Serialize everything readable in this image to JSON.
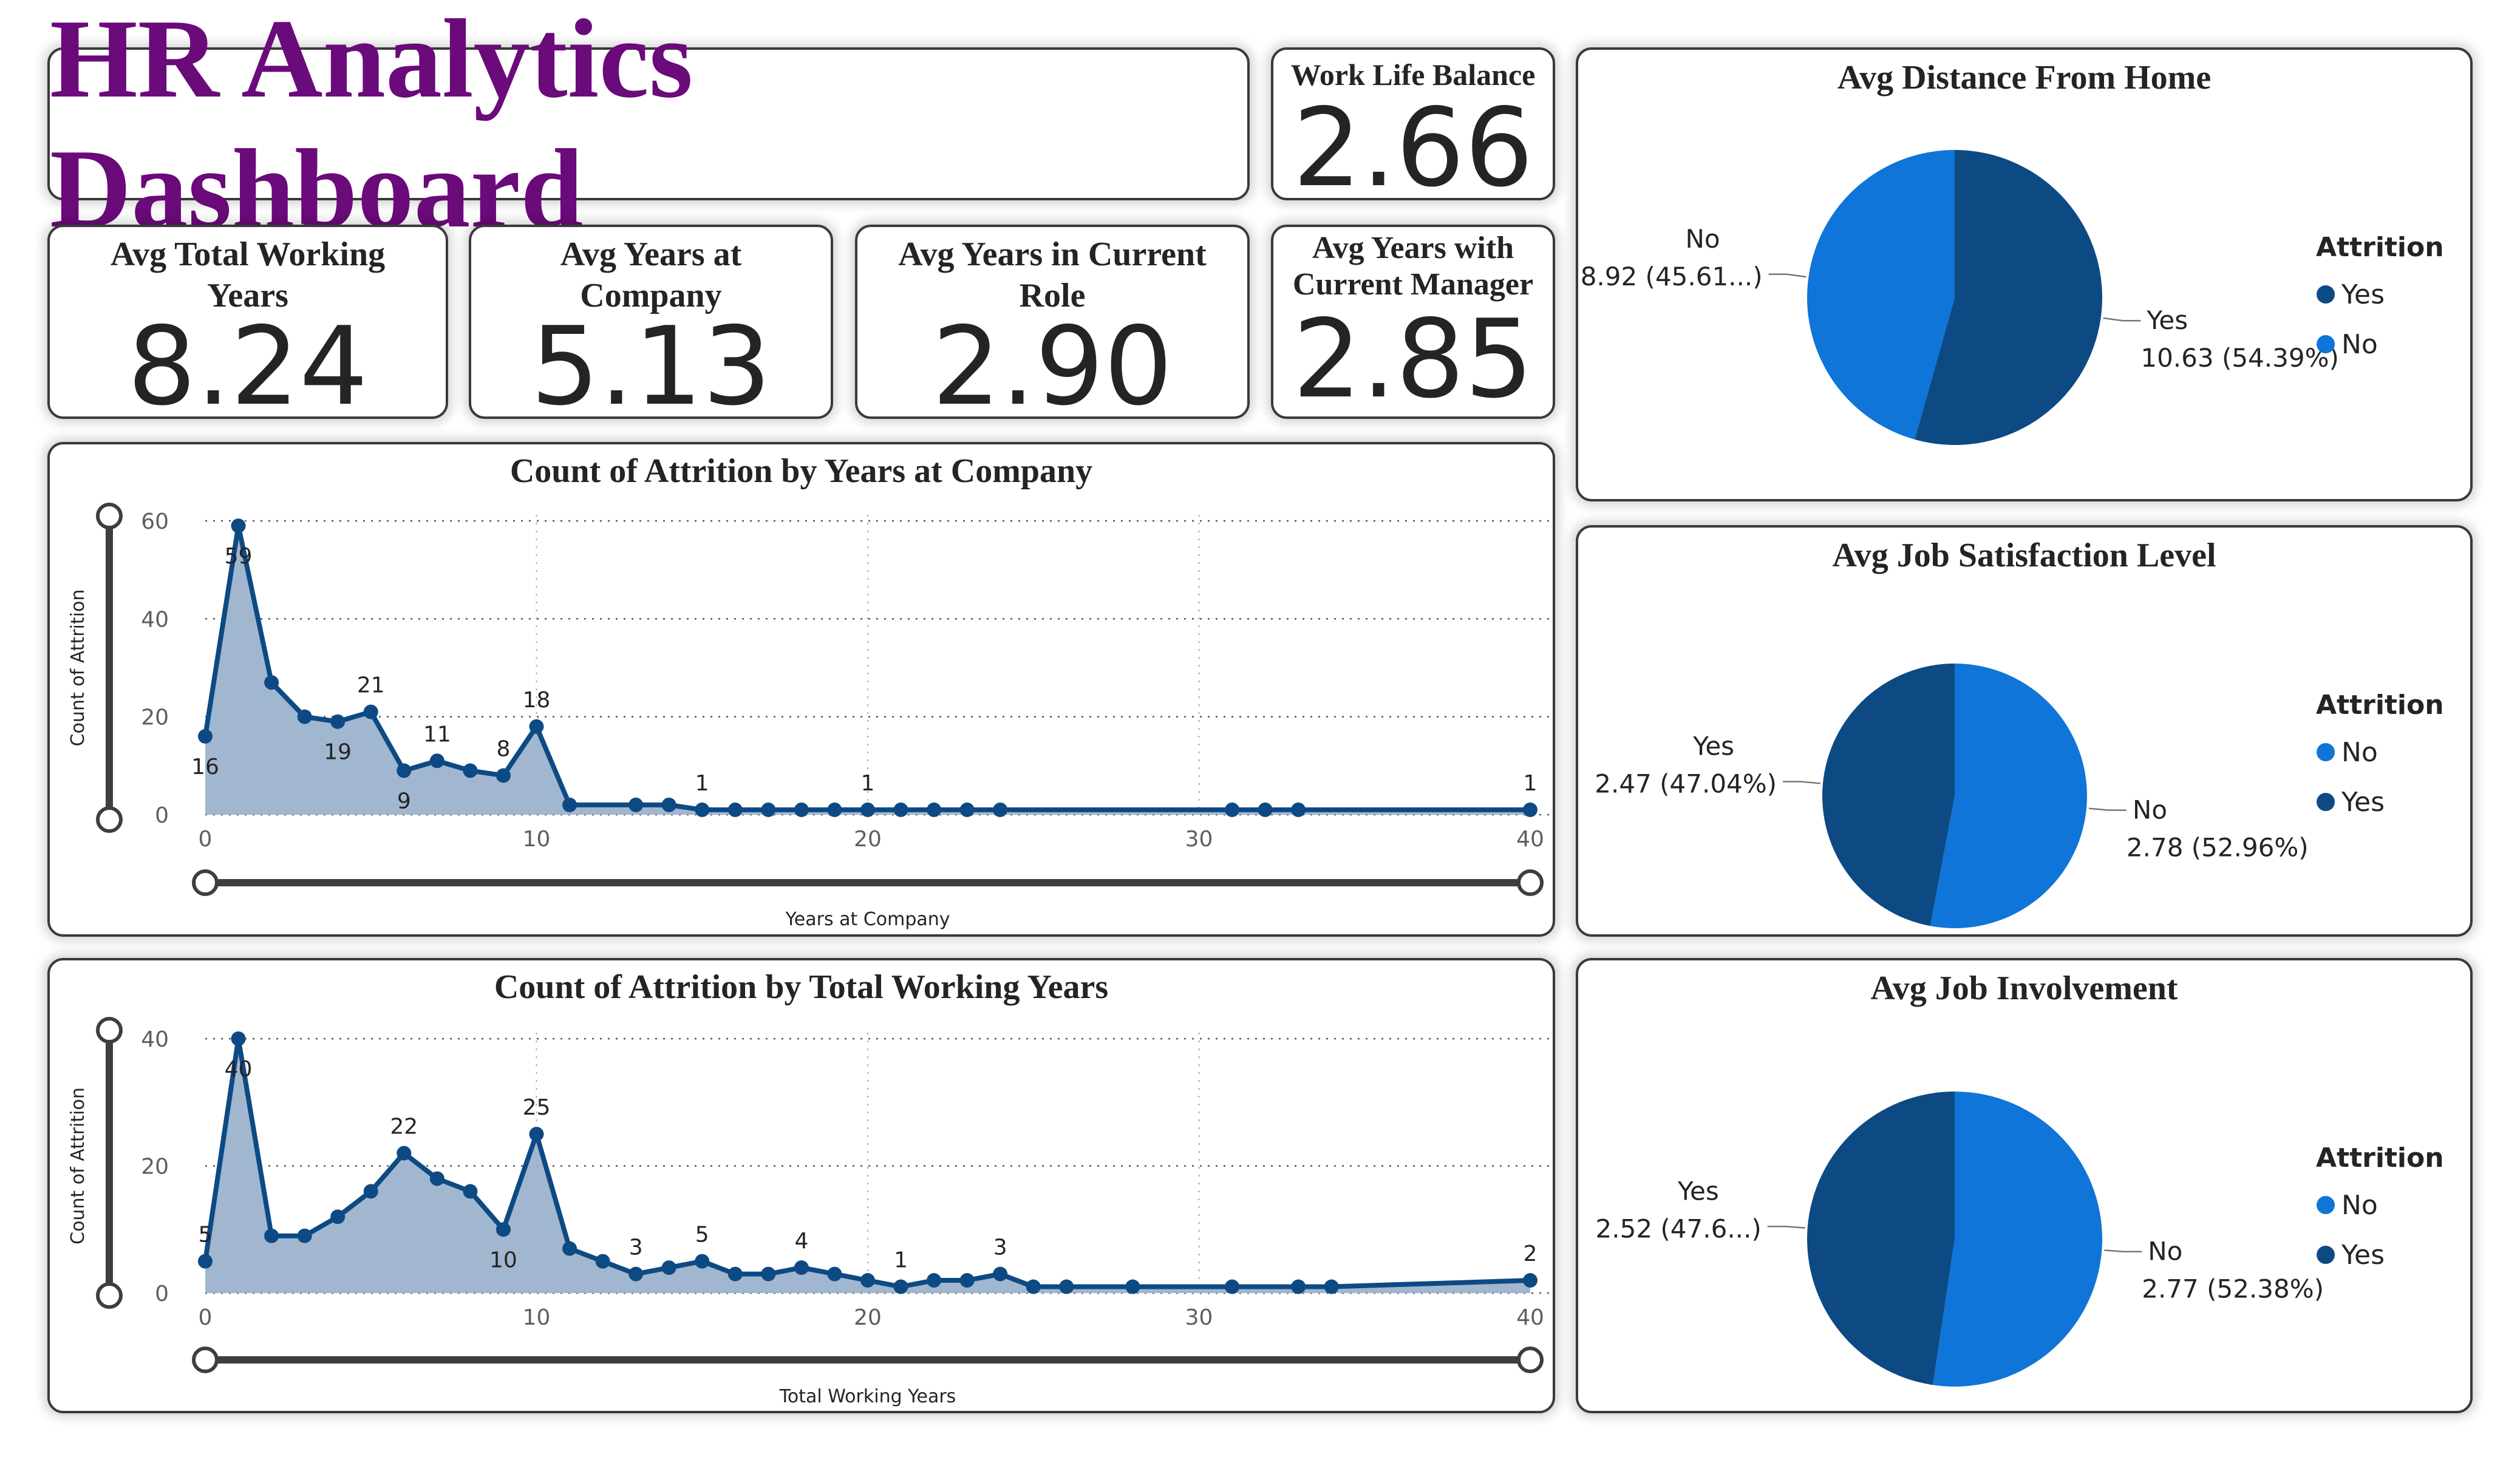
{
  "dashboard": {
    "title": "HR Analytics Dashboard"
  },
  "kpis": {
    "work_life": {
      "title": "Work Life Balance",
      "value": "2.66"
    },
    "total_working": {
      "title_line1": "Avg Total Working",
      "title_line2": "Years",
      "value": "8.24"
    },
    "years_company": {
      "title_line1": "Avg Years at",
      "title_line2": "Company",
      "value": "5.13"
    },
    "years_role": {
      "title_line1": "Avg Years in Current",
      "title_line2": "Role",
      "value": "2.90"
    },
    "years_manager": {
      "title_line1": "Avg Years with",
      "title_line2": "Current Manager",
      "value": "2.85"
    }
  },
  "colors": {
    "dark_blue": "#0d4a84",
    "light_blue": "#0f75d8",
    "area_fill": "#9cb2cc",
    "title_purple": "#6b0a7a"
  },
  "chart_data": [
    {
      "type": "area",
      "title": "Count of Attrition by Years at Company",
      "xlabel": "Years at Company",
      "ylabel": "Count of Attrition",
      "xlim": [
        0,
        40
      ],
      "ylim": [
        0,
        60
      ],
      "x_ticks": [
        0,
        10,
        20,
        30,
        40
      ],
      "y_ticks": [
        0,
        20,
        40,
        60
      ],
      "grid": true,
      "x": [
        0,
        1,
        2,
        3,
        4,
        5,
        6,
        7,
        8,
        9,
        10,
        11,
        13,
        14,
        15,
        16,
        17,
        18,
        19,
        20,
        21,
        22,
        23,
        24,
        31,
        32,
        33,
        40
      ],
      "values": [
        16,
        59,
        27,
        20,
        19,
        21,
        9,
        11,
        9,
        8,
        18,
        2,
        2,
        2,
        1,
        1,
        1,
        1,
        1,
        1,
        1,
        1,
        1,
        1,
        1,
        1,
        1,
        1
      ],
      "data_labels": [
        {
          "x": 0,
          "text": "16",
          "pos": "below"
        },
        {
          "x": 1,
          "text": "59",
          "pos": "below"
        },
        {
          "x": 4,
          "text": "19",
          "pos": "below"
        },
        {
          "x": 5,
          "text": "21",
          "pos": "above"
        },
        {
          "x": 6,
          "text": "9",
          "pos": "below"
        },
        {
          "x": 7,
          "text": "11",
          "pos": "above"
        },
        {
          "x": 9,
          "text": "8",
          "pos": "above"
        },
        {
          "x": 10,
          "text": "18",
          "pos": "above"
        },
        {
          "x": 15,
          "text": "1",
          "pos": "above"
        },
        {
          "x": 20,
          "text": "1",
          "pos": "above"
        },
        {
          "x": 40,
          "text": "1",
          "pos": "above"
        }
      ]
    },
    {
      "type": "area",
      "title": "Count of Attrition by Total Working Years",
      "xlabel": "Total Working Years",
      "ylabel": "Count of Attrition",
      "xlim": [
        0,
        40
      ],
      "ylim": [
        0,
        40
      ],
      "x_ticks": [
        0,
        10,
        20,
        30,
        40
      ],
      "y_ticks": [
        0,
        20,
        40
      ],
      "grid": true,
      "x": [
        0,
        1,
        2,
        3,
        4,
        5,
        6,
        7,
        8,
        9,
        10,
        11,
        12,
        13,
        14,
        15,
        16,
        17,
        18,
        19,
        20,
        21,
        22,
        23,
        24,
        25,
        26,
        28,
        31,
        33,
        34,
        40
      ],
      "values": [
        5,
        40,
        9,
        9,
        12,
        16,
        22,
        18,
        16,
        10,
        25,
        7,
        5,
        3,
        4,
        5,
        3,
        3,
        4,
        3,
        2,
        1,
        2,
        2,
        3,
        1,
        1,
        1,
        1,
        1,
        1,
        2
      ],
      "data_labels": [
        {
          "x": 0,
          "text": "5",
          "pos": "above"
        },
        {
          "x": 1,
          "text": "40",
          "pos": "below"
        },
        {
          "x": 6,
          "text": "22",
          "pos": "above"
        },
        {
          "x": 9,
          "text": "10",
          "pos": "below"
        },
        {
          "x": 10,
          "text": "25",
          "pos": "above"
        },
        {
          "x": 13,
          "text": "3",
          "pos": "above"
        },
        {
          "x": 15,
          "text": "5",
          "pos": "above"
        },
        {
          "x": 18,
          "text": "4",
          "pos": "above"
        },
        {
          "x": 21,
          "text": "1",
          "pos": "above"
        },
        {
          "x": 24,
          "text": "3",
          "pos": "above"
        },
        {
          "x": 40,
          "text": "2",
          "pos": "above"
        }
      ]
    },
    {
      "type": "pie",
      "title": "Avg Distance From Home",
      "legend_title": "Attrition",
      "legend": [
        "Yes",
        "No"
      ],
      "legend_colors": [
        "#0d4a84",
        "#0f75d8"
      ],
      "legend_position": "right",
      "slices": [
        {
          "name": "Yes",
          "value": 10.63,
          "pct": 54.39,
          "color": "#0d4a84",
          "label_value": "Yes",
          "label_detail": "10.63 (54.39%)"
        },
        {
          "name": "No",
          "value": 8.92,
          "pct": 45.61,
          "color": "#0f75d8",
          "label_value": "No",
          "label_detail": "8.92 (45.61...)"
        }
      ]
    },
    {
      "type": "pie",
      "title": "Avg Job Satisfaction Level",
      "legend_title": "Attrition",
      "legend": [
        "No",
        "Yes"
      ],
      "legend_colors": [
        "#0f75d8",
        "#0d4a84"
      ],
      "legend_position": "right",
      "slices": [
        {
          "name": "No",
          "value": 2.78,
          "pct": 52.96,
          "color": "#0f75d8",
          "label_value": "No",
          "label_detail": "2.78 (52.96%)"
        },
        {
          "name": "Yes",
          "value": 2.47,
          "pct": 47.04,
          "color": "#0d4a84",
          "label_value": "Yes",
          "label_detail": "2.47 (47.04%)"
        }
      ]
    },
    {
      "type": "pie",
      "title": "Avg Job Involvement",
      "legend_title": "Attrition",
      "legend": [
        "No",
        "Yes"
      ],
      "legend_colors": [
        "#0f75d8",
        "#0d4a84"
      ],
      "legend_position": "right",
      "slices": [
        {
          "name": "No",
          "value": 2.77,
          "pct": 52.38,
          "color": "#0f75d8",
          "label_value": "No",
          "label_detail": "2.77 (52.38%)"
        },
        {
          "name": "Yes",
          "value": 2.52,
          "pct": 47.62,
          "color": "#0d4a84",
          "label_value": "Yes",
          "label_detail": "2.52 (47.6...)"
        }
      ]
    }
  ]
}
